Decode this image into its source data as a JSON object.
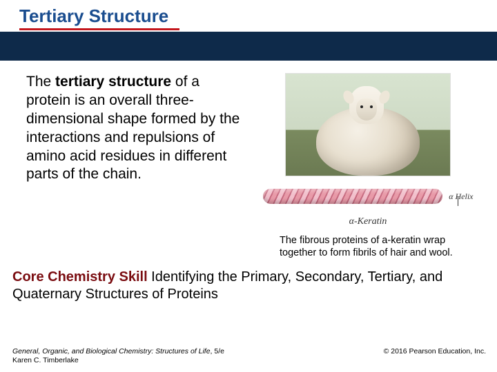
{
  "colors": {
    "title_color": "#1a4d8f",
    "underline_color": "#c4161c",
    "band_color": "#0e2a4a",
    "skill_label_color": "#7a0c10",
    "helix_light": "#e89aa8",
    "helix_dark": "#c76b80",
    "helix_highlight": "#f2c0cc",
    "background": "#ffffff"
  },
  "title": "Tertiary Structure",
  "body": {
    "pre": "The ",
    "bold": "tertiary structure",
    "post": " of a protein is an overall three-dimensional shape formed by the interactions and repulsions of amino acid residues in different parts of the chain."
  },
  "figure": {
    "helix_label": "α Helix",
    "keratin_caption": "α-Keratin",
    "caption": "The fibrous proteins of a-keratin wrap together to form fibrils of hair and wool."
  },
  "skill": {
    "label": "Core Chemistry Skill",
    "text": "  Identifying the Primary, Secondary, Tertiary, and Quaternary Structures of Proteins"
  },
  "footer": {
    "book": "General, Organic, and Biological Chemistry: Structures of Life",
    "edition": ", 5/e",
    "author": "Karen C. Timberlake",
    "copyright": "© 2016 Pearson Education, Inc."
  }
}
